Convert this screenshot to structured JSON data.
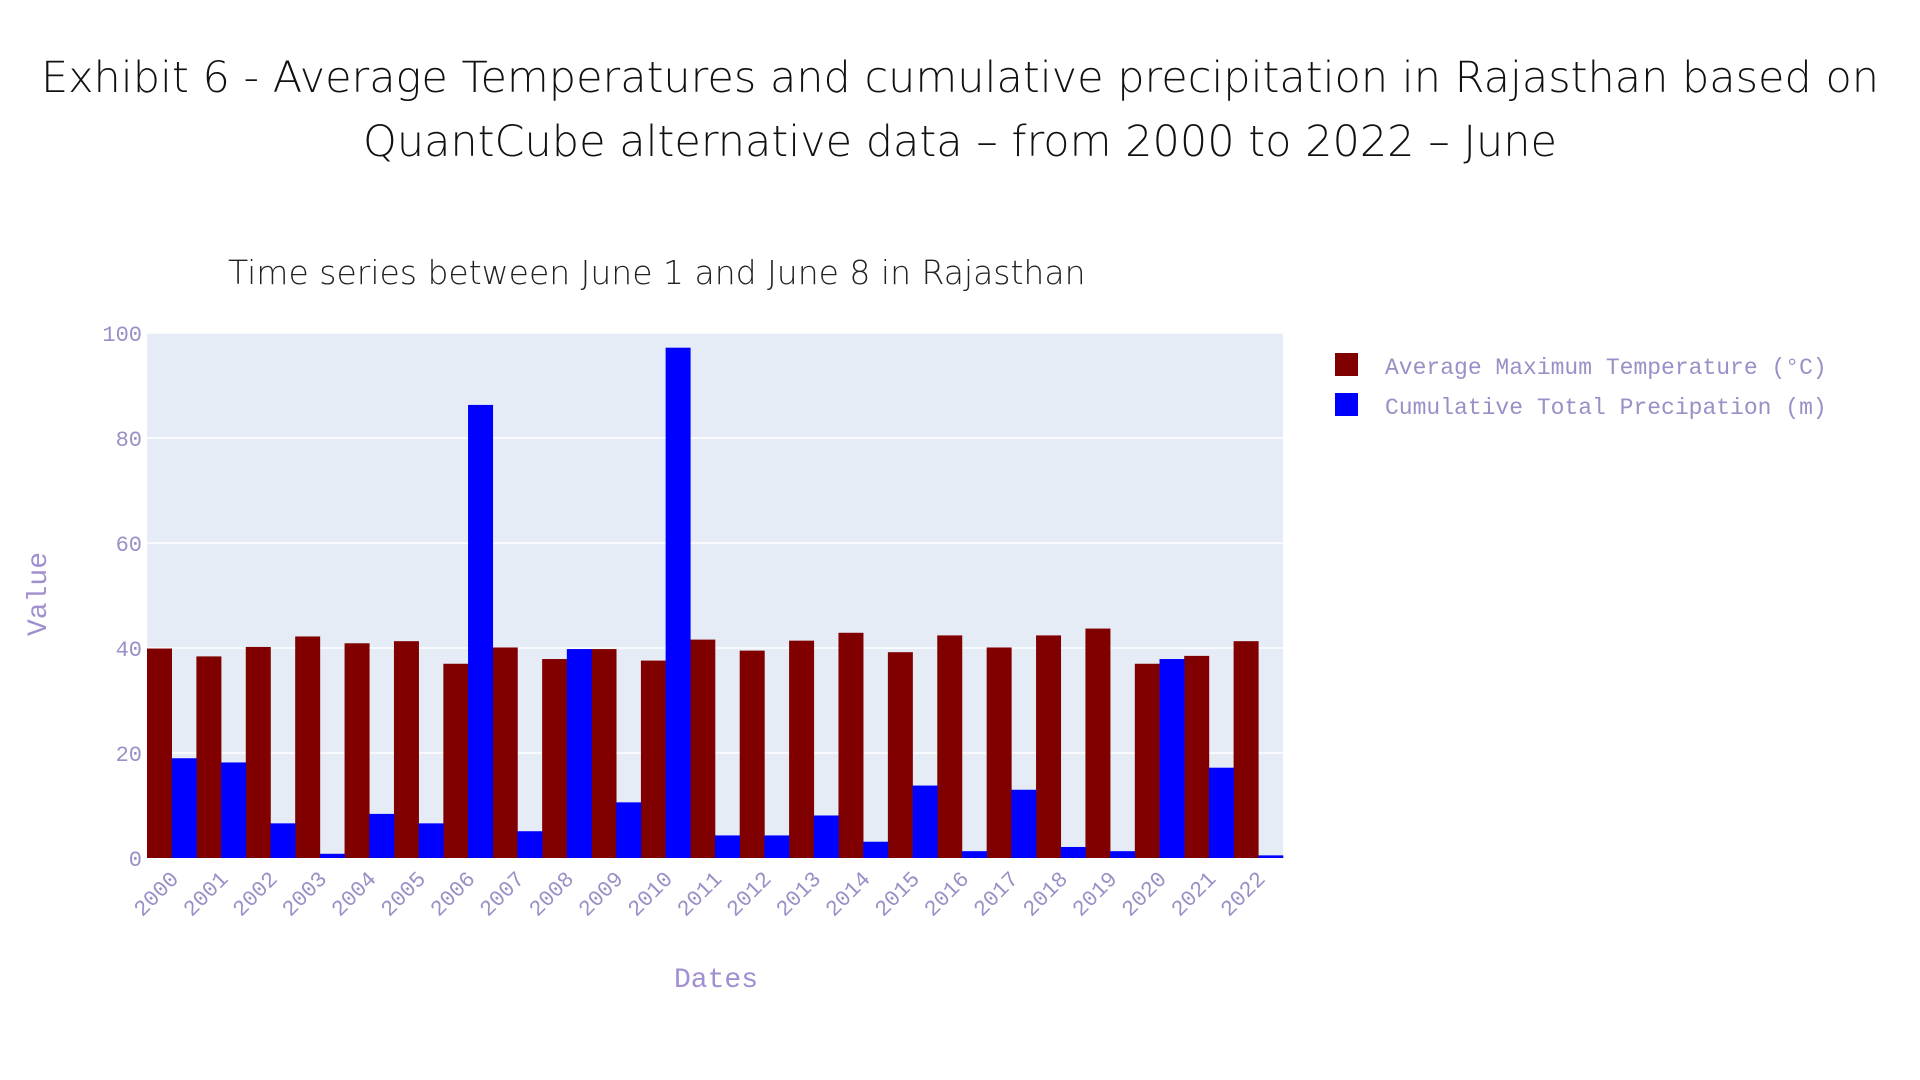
{
  "exhibit": {
    "title_line1": "Exhibit 6 - Average Temperatures and cumulative precipitation in Rajasthan based on",
    "title_line2": "QuantCube alternative data – from 2000 to 2022 – June"
  },
  "chart_data": {
    "type": "bar",
    "title": "Time series between June 1 and June 8 in Rajasthan",
    "xlabel": "Dates",
    "ylabel": "Value",
    "ylim": [
      0,
      100
    ],
    "yticks": [
      0,
      20,
      40,
      60,
      80,
      100
    ],
    "grid": true,
    "legend_position": "top-right",
    "categories": [
      "2000",
      "2001",
      "2002",
      "2003",
      "2004",
      "2005",
      "2006",
      "2007",
      "2008",
      "2009",
      "2010",
      "2011",
      "2012",
      "2013",
      "2014",
      "2015",
      "2016",
      "2017",
      "2018",
      "2019",
      "2020",
      "2021",
      "2022"
    ],
    "series": [
      {
        "name": "Average Maximum Temperature (°C)",
        "color": "#800000",
        "values": [
          39.9,
          38.4,
          40.2,
          42.2,
          40.9,
          41.3,
          37.0,
          40.1,
          37.9,
          39.8,
          37.6,
          41.6,
          39.5,
          41.4,
          42.9,
          39.2,
          42.4,
          40.1,
          42.4,
          43.7,
          37.0,
          38.5,
          41.3
        ]
      },
      {
        "name": "Cumulative Total Precipation (m)",
        "color": "#0000ff",
        "values": [
          19.0,
          18.2,
          6.6,
          0.8,
          8.4,
          6.6,
          86.3,
          5.1,
          39.8,
          10.6,
          97.2,
          4.3,
          4.3,
          8.1,
          3.1,
          13.8,
          1.3,
          13.0,
          2.1,
          1.3,
          37.9,
          17.2,
          0.5
        ]
      }
    ]
  },
  "colors": {
    "plot_background": "#e5ecf6",
    "gridline": "#ffffff",
    "axis_text": "#9a8fc6",
    "axis_label": "#a18fd0",
    "legend_text": "#9a8fc6"
  }
}
